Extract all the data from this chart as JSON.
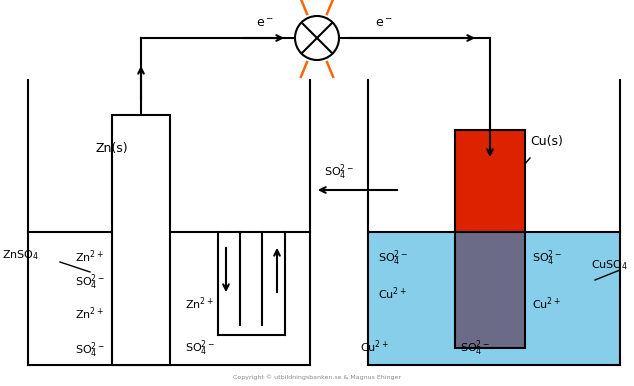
{
  "bg_color": "#ffffff",
  "solution_color_right": "#87ceeb",
  "cu_red": "#dd2200",
  "cu_gray": "#6b6b88",
  "bulb_ray_color": "#ff6600",
  "lw": 1.5,
  "labels": {
    "zn_s": "Zn(s)",
    "cu_s": "Cu(s)",
    "znso4": "ZnSO$_4$",
    "cuso4": "CuSO$_4$",
    "e_left": "e$^-$",
    "e_right": "e$^-$",
    "so4_bridge": "SO$_4^{2-}$",
    "copyright": "Copyright © utbildningsbanken.se & Magnus Ehinger"
  }
}
